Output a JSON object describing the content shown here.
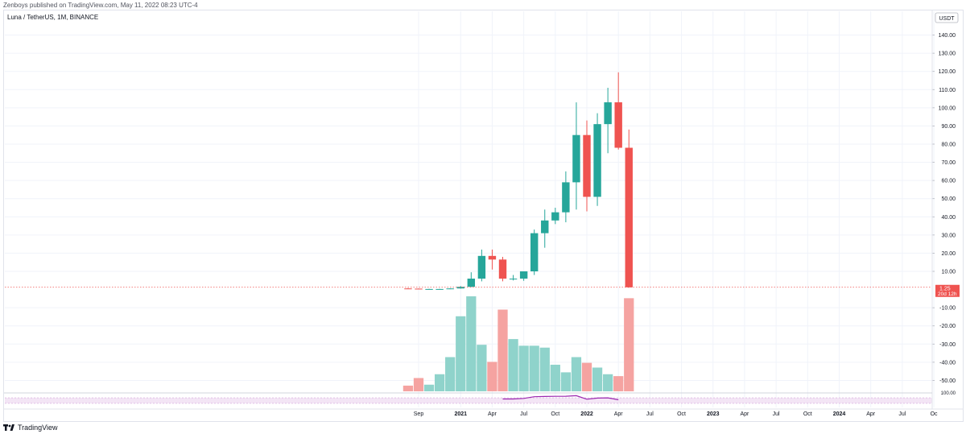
{
  "header": {
    "published_text": "Zenboys published on TradingView.com, May 11, 2022 08:23 UTC-4"
  },
  "chart_meta": {
    "symbol_text": "Luna / TetherUS, 1M, BINANCE",
    "currency_label": "USDT",
    "price_tag": "1.25",
    "countdown_tag": "20d 12h",
    "brand": "TradingView"
  },
  "colors": {
    "up": "#26a69a",
    "down": "#ef5350",
    "vol_up": "#8fd3cb",
    "vol_down": "#f5a3a1",
    "grid": "#f0f3fa",
    "axis_text": "#131722",
    "last_price_line": "#ef5350",
    "indicator_line": "#9c27b0",
    "indicator_band": "#f3e5f5"
  },
  "chart_data": {
    "type": "candlestick",
    "title": "Luna / TetherUS, 1M, BINANCE",
    "ylabel": "USDT",
    "ylim": [
      -56,
      146
    ],
    "y_ticks": [
      140,
      130,
      120,
      110,
      100,
      90,
      80,
      70,
      60,
      50,
      40,
      30,
      20,
      10,
      -10,
      -20,
      -30,
      -40,
      -50
    ],
    "x_ticks": [
      {
        "label": "Sep",
        "date": "2020-09"
      },
      {
        "label": "2021",
        "date": "2021-01",
        "bold": true
      },
      {
        "label": "Apr",
        "date": "2021-04"
      },
      {
        "label": "Jul",
        "date": "2021-07"
      },
      {
        "label": "Oct",
        "date": "2021-10"
      },
      {
        "label": "2022",
        "date": "2022-01",
        "bold": true
      },
      {
        "label": "Apr",
        "date": "2022-04"
      },
      {
        "label": "Jul",
        "date": "2022-07"
      },
      {
        "label": "Oct",
        "date": "2022-10"
      },
      {
        "label": "2023",
        "date": "2023-01",
        "bold": true
      },
      {
        "label": "Apr",
        "date": "2023-04"
      },
      {
        "label": "Jul",
        "date": "2023-07"
      },
      {
        "label": "Oct",
        "date": "2023-10"
      },
      {
        "label": "2024",
        "date": "2024-01",
        "bold": true
      },
      {
        "label": "Apr",
        "date": "2024-04"
      },
      {
        "label": "Jul",
        "date": "2024-07"
      },
      {
        "label": "Oc",
        "date": "2024-10"
      }
    ],
    "last_price": 1.25,
    "candles": [
      {
        "date": "2020-08",
        "open": 0.6,
        "high": 0.8,
        "low": 0.3,
        "close": 0.5
      },
      {
        "date": "2020-09",
        "open": 0.5,
        "high": 0.6,
        "low": 0.2,
        "close": 0.3
      },
      {
        "date": "2020-10",
        "open": 0.3,
        "high": 0.4,
        "low": 0.2,
        "close": 0.3
      },
      {
        "date": "2020-11",
        "open": 0.3,
        "high": 0.4,
        "low": 0.2,
        "close": 0.3
      },
      {
        "date": "2020-12",
        "open": 0.3,
        "high": 0.7,
        "low": 0.2,
        "close": 0.6
      },
      {
        "date": "2021-01",
        "open": 0.6,
        "high": 1.9,
        "low": 0.5,
        "close": 1.5
      },
      {
        "date": "2021-02",
        "open": 1.5,
        "high": 9.5,
        "low": 1.3,
        "close": 6.0
      },
      {
        "date": "2021-03",
        "open": 6.0,
        "high": 22.0,
        "low": 4.5,
        "close": 18.5
      },
      {
        "date": "2021-04",
        "open": 18.5,
        "high": 22.0,
        "low": 11.0,
        "close": 16.5
      },
      {
        "date": "2021-05",
        "open": 16.5,
        "high": 18.0,
        "low": 4.5,
        "close": 6.0
      },
      {
        "date": "2021-06",
        "open": 6.0,
        "high": 8.0,
        "low": 5.0,
        "close": 6.0
      },
      {
        "date": "2021-07",
        "open": 6.0,
        "high": 10.0,
        "low": 4.8,
        "close": 10.0
      },
      {
        "date": "2021-08",
        "open": 10.0,
        "high": 33.0,
        "low": 8.0,
        "close": 31.0
      },
      {
        "date": "2021-09",
        "open": 31.0,
        "high": 44.0,
        "low": 23.0,
        "close": 38.0
      },
      {
        "date": "2021-10",
        "open": 38.0,
        "high": 45.0,
        "low": 36.0,
        "close": 42.5
      },
      {
        "date": "2021-11",
        "open": 42.5,
        "high": 65.0,
        "low": 37.0,
        "close": 59.0
      },
      {
        "date": "2021-12",
        "open": 59.0,
        "high": 103.0,
        "low": 44.0,
        "close": 85.0
      },
      {
        "date": "2022-01",
        "open": 85.0,
        "high": 93.0,
        "low": 43.0,
        "close": 51.0
      },
      {
        "date": "2022-02",
        "open": 51.0,
        "high": 97.0,
        "low": 46.0,
        "close": 91.0
      },
      {
        "date": "2022-03",
        "open": 91.0,
        "high": 111.0,
        "low": 75.0,
        "close": 103.0
      },
      {
        "date": "2022-04",
        "open": 103.0,
        "high": 119.5,
        "low": 77.0,
        "close": 78.0
      },
      {
        "date": "2022-05",
        "open": 78.0,
        "high": 88.0,
        "low": 1.0,
        "close": 1.25
      }
    ],
    "volume": {
      "scale_note": "relative volume (0-100)",
      "values": [
        {
          "date": "2020-08",
          "value": 6,
          "direction": "down"
        },
        {
          "date": "2020-09",
          "value": 14,
          "direction": "down"
        },
        {
          "date": "2020-10",
          "value": 7,
          "direction": "up"
        },
        {
          "date": "2020-11",
          "value": 18,
          "direction": "up"
        },
        {
          "date": "2020-12",
          "value": 36,
          "direction": "up"
        },
        {
          "date": "2021-01",
          "value": 79,
          "direction": "up"
        },
        {
          "date": "2021-02",
          "value": 100,
          "direction": "up"
        },
        {
          "date": "2021-03",
          "value": 49,
          "direction": "up"
        },
        {
          "date": "2021-04",
          "value": 31,
          "direction": "down"
        },
        {
          "date": "2021-05",
          "value": 86,
          "direction": "down"
        },
        {
          "date": "2021-06",
          "value": 55,
          "direction": "up"
        },
        {
          "date": "2021-07",
          "value": 48,
          "direction": "up"
        },
        {
          "date": "2021-08",
          "value": 48,
          "direction": "up"
        },
        {
          "date": "2021-09",
          "value": 46,
          "direction": "up"
        },
        {
          "date": "2021-10",
          "value": 28,
          "direction": "up"
        },
        {
          "date": "2021-11",
          "value": 20,
          "direction": "up"
        },
        {
          "date": "2021-12",
          "value": 36,
          "direction": "up"
        },
        {
          "date": "2022-01",
          "value": 30,
          "direction": "down"
        },
        {
          "date": "2022-02",
          "value": 25,
          "direction": "up"
        },
        {
          "date": "2022-03",
          "value": 18,
          "direction": "up"
        },
        {
          "date": "2022-04",
          "value": 16,
          "direction": "down"
        },
        {
          "date": "2022-05",
          "value": 98,
          "direction": "down"
        }
      ]
    },
    "indicator": {
      "ylim": [
        0,
        100
      ],
      "y_tick": 100,
      "band": [
        30,
        70
      ],
      "series": [
        {
          "date": "2021-05",
          "value": 62
        },
        {
          "date": "2021-06",
          "value": 62
        },
        {
          "date": "2021-07",
          "value": 66
        },
        {
          "date": "2021-08",
          "value": 78
        },
        {
          "date": "2021-09",
          "value": 80
        },
        {
          "date": "2021-10",
          "value": 81
        },
        {
          "date": "2021-11",
          "value": 82
        },
        {
          "date": "2021-12",
          "value": 86
        },
        {
          "date": "2022-01",
          "value": 60
        },
        {
          "date": "2022-02",
          "value": 68
        },
        {
          "date": "2022-03",
          "value": 70
        },
        {
          "date": "2022-04",
          "value": 56
        }
      ]
    }
  }
}
